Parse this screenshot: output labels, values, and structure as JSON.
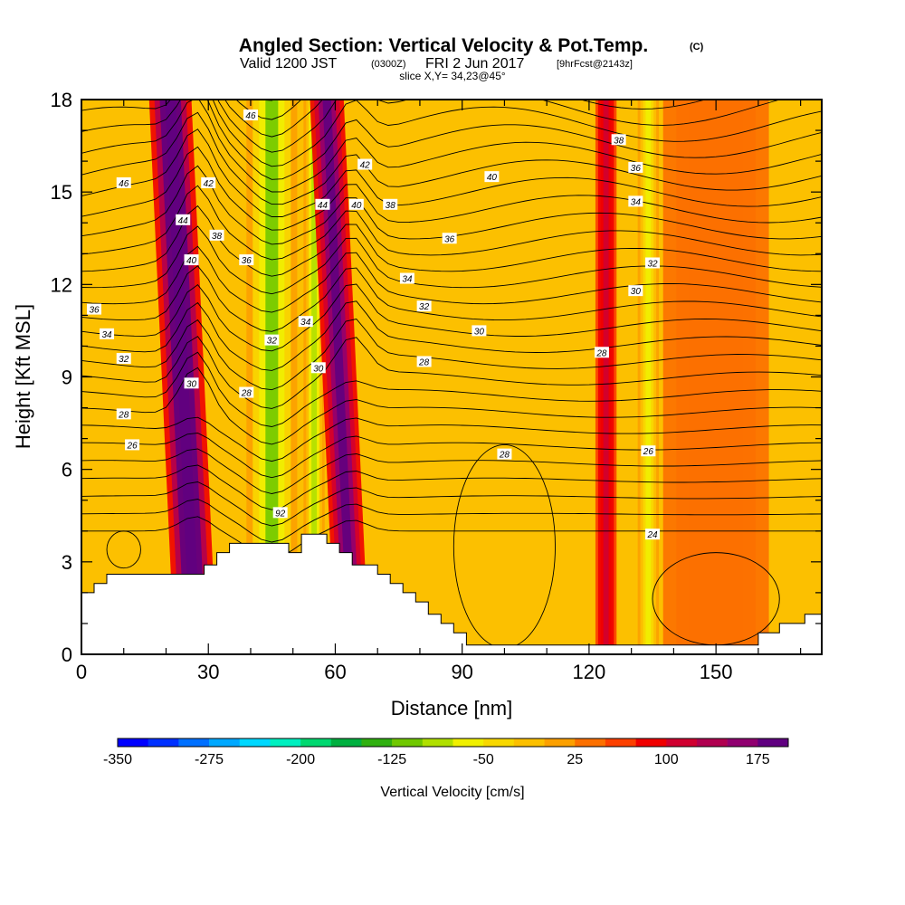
{
  "title": {
    "main": "Angled Section: Vertical Velocity & Pot.Temp.",
    "copyright": "(C)",
    "valid": "Valid 1200 JST",
    "valid_z": "(0300Z)",
    "valid_date": "FRI 2 Jun 2017",
    "forecast": "[9hrFcst@2143z]",
    "slice": "slice X,Y= 34,23@45°"
  },
  "chart_data": {
    "type": "heatmap",
    "xlabel": "Distance [nm]",
    "ylabel": "Height [Kft MSL]",
    "xlim": [
      0,
      175
    ],
    "ylim": [
      0,
      18
    ],
    "x_ticks": [
      0,
      30,
      60,
      90,
      120,
      150
    ],
    "y_ticks": [
      0,
      3,
      6,
      9,
      12,
      15,
      18
    ],
    "colorbar": {
      "title": "Vertical Velocity [cm/s]",
      "tick_labels": [
        "-350",
        "-275",
        "-200",
        "-125",
        "-50",
        "25",
        "100",
        "175"
      ],
      "tick_values": [
        -350,
        -275,
        -200,
        -125,
        -50,
        25,
        100,
        175
      ],
      "colors": [
        "#0000ff",
        "#0030ff",
        "#0070ff",
        "#00a8ff",
        "#00d8ff",
        "#00f0c0",
        "#00d870",
        "#00b040",
        "#30b010",
        "#70c800",
        "#b0e000",
        "#f0f000",
        "#f8d800",
        "#fcc000",
        "#fca000",
        "#fc7000",
        "#fc4000",
        "#f00000",
        "#d00030",
        "#b00050",
        "#900070",
        "#600080"
      ]
    },
    "velocity_bands": [
      {
        "name": "updraft",
        "x_center": 27,
        "x_width": 10,
        "value": 200
      },
      {
        "name": "downdraft",
        "x_center": 45,
        "x_width": 12,
        "value": -120
      },
      {
        "name": "downdraft",
        "x_center": 55,
        "x_width": 5,
        "value": -100
      },
      {
        "name": "updraft",
        "x_center": 64,
        "x_width": 8,
        "value": 180
      },
      {
        "name": "updraft",
        "x_center": 124,
        "x_width": 5,
        "value": 90
      },
      {
        "name": "downdraft",
        "x_center": 134,
        "x_width": 5,
        "value": -80
      },
      {
        "name": "weak updraft",
        "x_center": 150,
        "x_width": 25,
        "value": 30
      }
    ],
    "terrain": [
      [
        0,
        2
      ],
      [
        3,
        2
      ],
      [
        3,
        2.3
      ],
      [
        6,
        2.3
      ],
      [
        6,
        2.6
      ],
      [
        29,
        2.6
      ],
      [
        29,
        2.9
      ],
      [
        32,
        2.9
      ],
      [
        32,
        3.3
      ],
      [
        35,
        3.3
      ],
      [
        35,
        3.6
      ],
      [
        49,
        3.6
      ],
      [
        49,
        3.3
      ],
      [
        52,
        3.3
      ],
      [
        52,
        3.9
      ],
      [
        58,
        3.9
      ],
      [
        58,
        3.6
      ],
      [
        61,
        3.6
      ],
      [
        61,
        3.3
      ],
      [
        64,
        3.3
      ],
      [
        64,
        2.9
      ],
      [
        70,
        2.9
      ],
      [
        70,
        2.6
      ],
      [
        73,
        2.6
      ],
      [
        73,
        2.3
      ],
      [
        76,
        2.3
      ],
      [
        76,
        2.0
      ],
      [
        79,
        2.0
      ],
      [
        79,
        1.7
      ],
      [
        82,
        1.7
      ],
      [
        82,
        1.3
      ],
      [
        85,
        1.3
      ],
      [
        85,
        1.0
      ],
      [
        88,
        1.0
      ],
      [
        88,
        0.7
      ],
      [
        91,
        0.7
      ],
      [
        91,
        0.3
      ],
      [
        160,
        0.3
      ],
      [
        160,
        0.7
      ],
      [
        165,
        0.7
      ],
      [
        165,
        1.0
      ],
      [
        171,
        1.0
      ],
      [
        171,
        1.3
      ],
      [
        175,
        1.3
      ]
    ],
    "contour_labels": [
      {
        "text": "46",
        "x": 40,
        "y": 17.5
      },
      {
        "text": "46",
        "x": 10,
        "y": 15.3
      },
      {
        "text": "42",
        "x": 30,
        "y": 15.3
      },
      {
        "text": "44",
        "x": 24,
        "y": 14.1
      },
      {
        "text": "38",
        "x": 32,
        "y": 13.6
      },
      {
        "text": "40",
        "x": 26,
        "y": 12.8
      },
      {
        "text": "36",
        "x": 39,
        "y": 12.8
      },
      {
        "text": "44",
        "x": 57,
        "y": 14.6
      },
      {
        "text": "42",
        "x": 67,
        "y": 15.9
      },
      {
        "text": "40",
        "x": 65,
        "y": 14.6
      },
      {
        "text": "38",
        "x": 73,
        "y": 14.6
      },
      {
        "text": "40",
        "x": 97,
        "y": 15.5
      },
      {
        "text": "36",
        "x": 87,
        "y": 13.5
      },
      {
        "text": "34",
        "x": 77,
        "y": 12.2
      },
      {
        "text": "32",
        "x": 81,
        "y": 11.3
      },
      {
        "text": "30",
        "x": 94,
        "y": 10.5
      },
      {
        "text": "28",
        "x": 81,
        "y": 9.5
      },
      {
        "text": "38",
        "x": 127,
        "y": 16.7
      },
      {
        "text": "36",
        "x": 131,
        "y": 15.8
      },
      {
        "text": "34",
        "x": 131,
        "y": 14.7
      },
      {
        "text": "32",
        "x": 135,
        "y": 12.7
      },
      {
        "text": "30",
        "x": 131,
        "y": 11.8
      },
      {
        "text": "28",
        "x": 123,
        "y": 9.8
      },
      {
        "text": "36",
        "x": 3,
        "y": 11.2
      },
      {
        "text": "34",
        "x": 6,
        "y": 10.4
      },
      {
        "text": "32",
        "x": 10,
        "y": 9.6
      },
      {
        "text": "30",
        "x": 26,
        "y": 8.8
      },
      {
        "text": "28",
        "x": 39,
        "y": 8.5
      },
      {
        "text": "28",
        "x": 10,
        "y": 7.8
      },
      {
        "text": "26",
        "x": 12,
        "y": 6.8
      },
      {
        "text": "34",
        "x": 53,
        "y": 10.8
      },
      {
        "text": "32",
        "x": 45,
        "y": 10.2
      },
      {
        "text": "30",
        "x": 56,
        "y": 9.3
      },
      {
        "text": "92",
        "x": 47,
        "y": 4.6
      },
      {
        "text": "28",
        "x": 100,
        "y": 6.5
      },
      {
        "text": "26",
        "x": 134,
        "y": 6.6
      },
      {
        "text": "24",
        "x": 135,
        "y": 3.9
      }
    ]
  }
}
